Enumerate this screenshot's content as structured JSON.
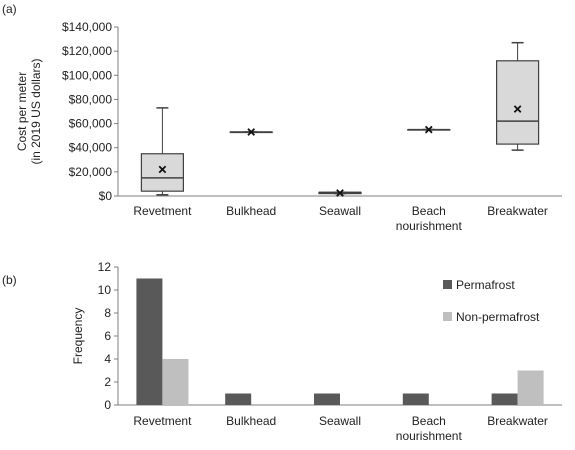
{
  "panel_labels": {
    "a": "(a)",
    "b": "(b)"
  },
  "colors": {
    "box_fill": "#d9d9d9",
    "stroke": "#404040",
    "permafrost": "#595959",
    "non_permafrost": "#bfbfbf",
    "axis": "#7f7f7f"
  },
  "chart_data": [
    {
      "type": "box",
      "ylabel_lines": [
        "Cost per meter",
        "(in 2019 US dollars)"
      ],
      "ylim": [
        0,
        140000
      ],
      "yticks": [
        0,
        20000,
        40000,
        60000,
        80000,
        100000,
        120000,
        140000
      ],
      "ytick_labels": [
        "$0",
        "$20,000",
        "$40,000",
        "$60,000",
        "$80,000",
        "$100,000",
        "$120,000",
        "$140,000"
      ],
      "categories": [
        {
          "key": "revetment",
          "lines": [
            "Revetment"
          ]
        },
        {
          "key": "bulkhead",
          "lines": [
            "Bulkhead"
          ]
        },
        {
          "key": "seawall",
          "lines": [
            "Seawall"
          ]
        },
        {
          "key": "beach-nourishment",
          "lines": [
            "Beach",
            "nourishment"
          ]
        },
        {
          "key": "breakwater",
          "lines": [
            "Breakwater"
          ]
        }
      ],
      "boxes": [
        {
          "min": 1000,
          "q1": 4000,
          "median": 15000,
          "q3": 35000,
          "max": 73000,
          "mean": 22000
        },
        {
          "min": 53000,
          "q1": 53000,
          "median": 53000,
          "q3": 53000,
          "max": 53000,
          "mean": 53000
        },
        {
          "min": 2000,
          "q1": 2000,
          "median": 3000,
          "q3": 3000,
          "max": 3000,
          "mean": 2500
        },
        {
          "min": 55000,
          "q1": 55000,
          "median": 55000,
          "q3": 55000,
          "max": 55000,
          "mean": 55000
        },
        {
          "min": 38000,
          "q1": 43000,
          "median": 62000,
          "q3": 112000,
          "max": 127000,
          "mean": 72000
        }
      ]
    },
    {
      "type": "bar",
      "ylabel": "Frequency",
      "ylim": [
        0,
        12
      ],
      "yticks": [
        0,
        2,
        4,
        6,
        8,
        10,
        12
      ],
      "ytick_labels": [
        "0",
        "2",
        "4",
        "6",
        "8",
        "10",
        "12"
      ],
      "categories": [
        {
          "key": "revetment",
          "lines": [
            "Revetment"
          ]
        },
        {
          "key": "bulkhead",
          "lines": [
            "Bulkhead"
          ]
        },
        {
          "key": "seawall",
          "lines": [
            "Seawall"
          ]
        },
        {
          "key": "beach-nourishment",
          "lines": [
            "Beach",
            "nourishment"
          ]
        },
        {
          "key": "breakwater",
          "lines": [
            "Breakwater"
          ]
        }
      ],
      "series": [
        {
          "name": "Permafrost",
          "values": [
            11,
            1,
            1,
            1,
            1
          ]
        },
        {
          "name": "Non-permafrost",
          "values": [
            4,
            0,
            0,
            0,
            3
          ]
        }
      ],
      "legend_position": "right"
    }
  ]
}
